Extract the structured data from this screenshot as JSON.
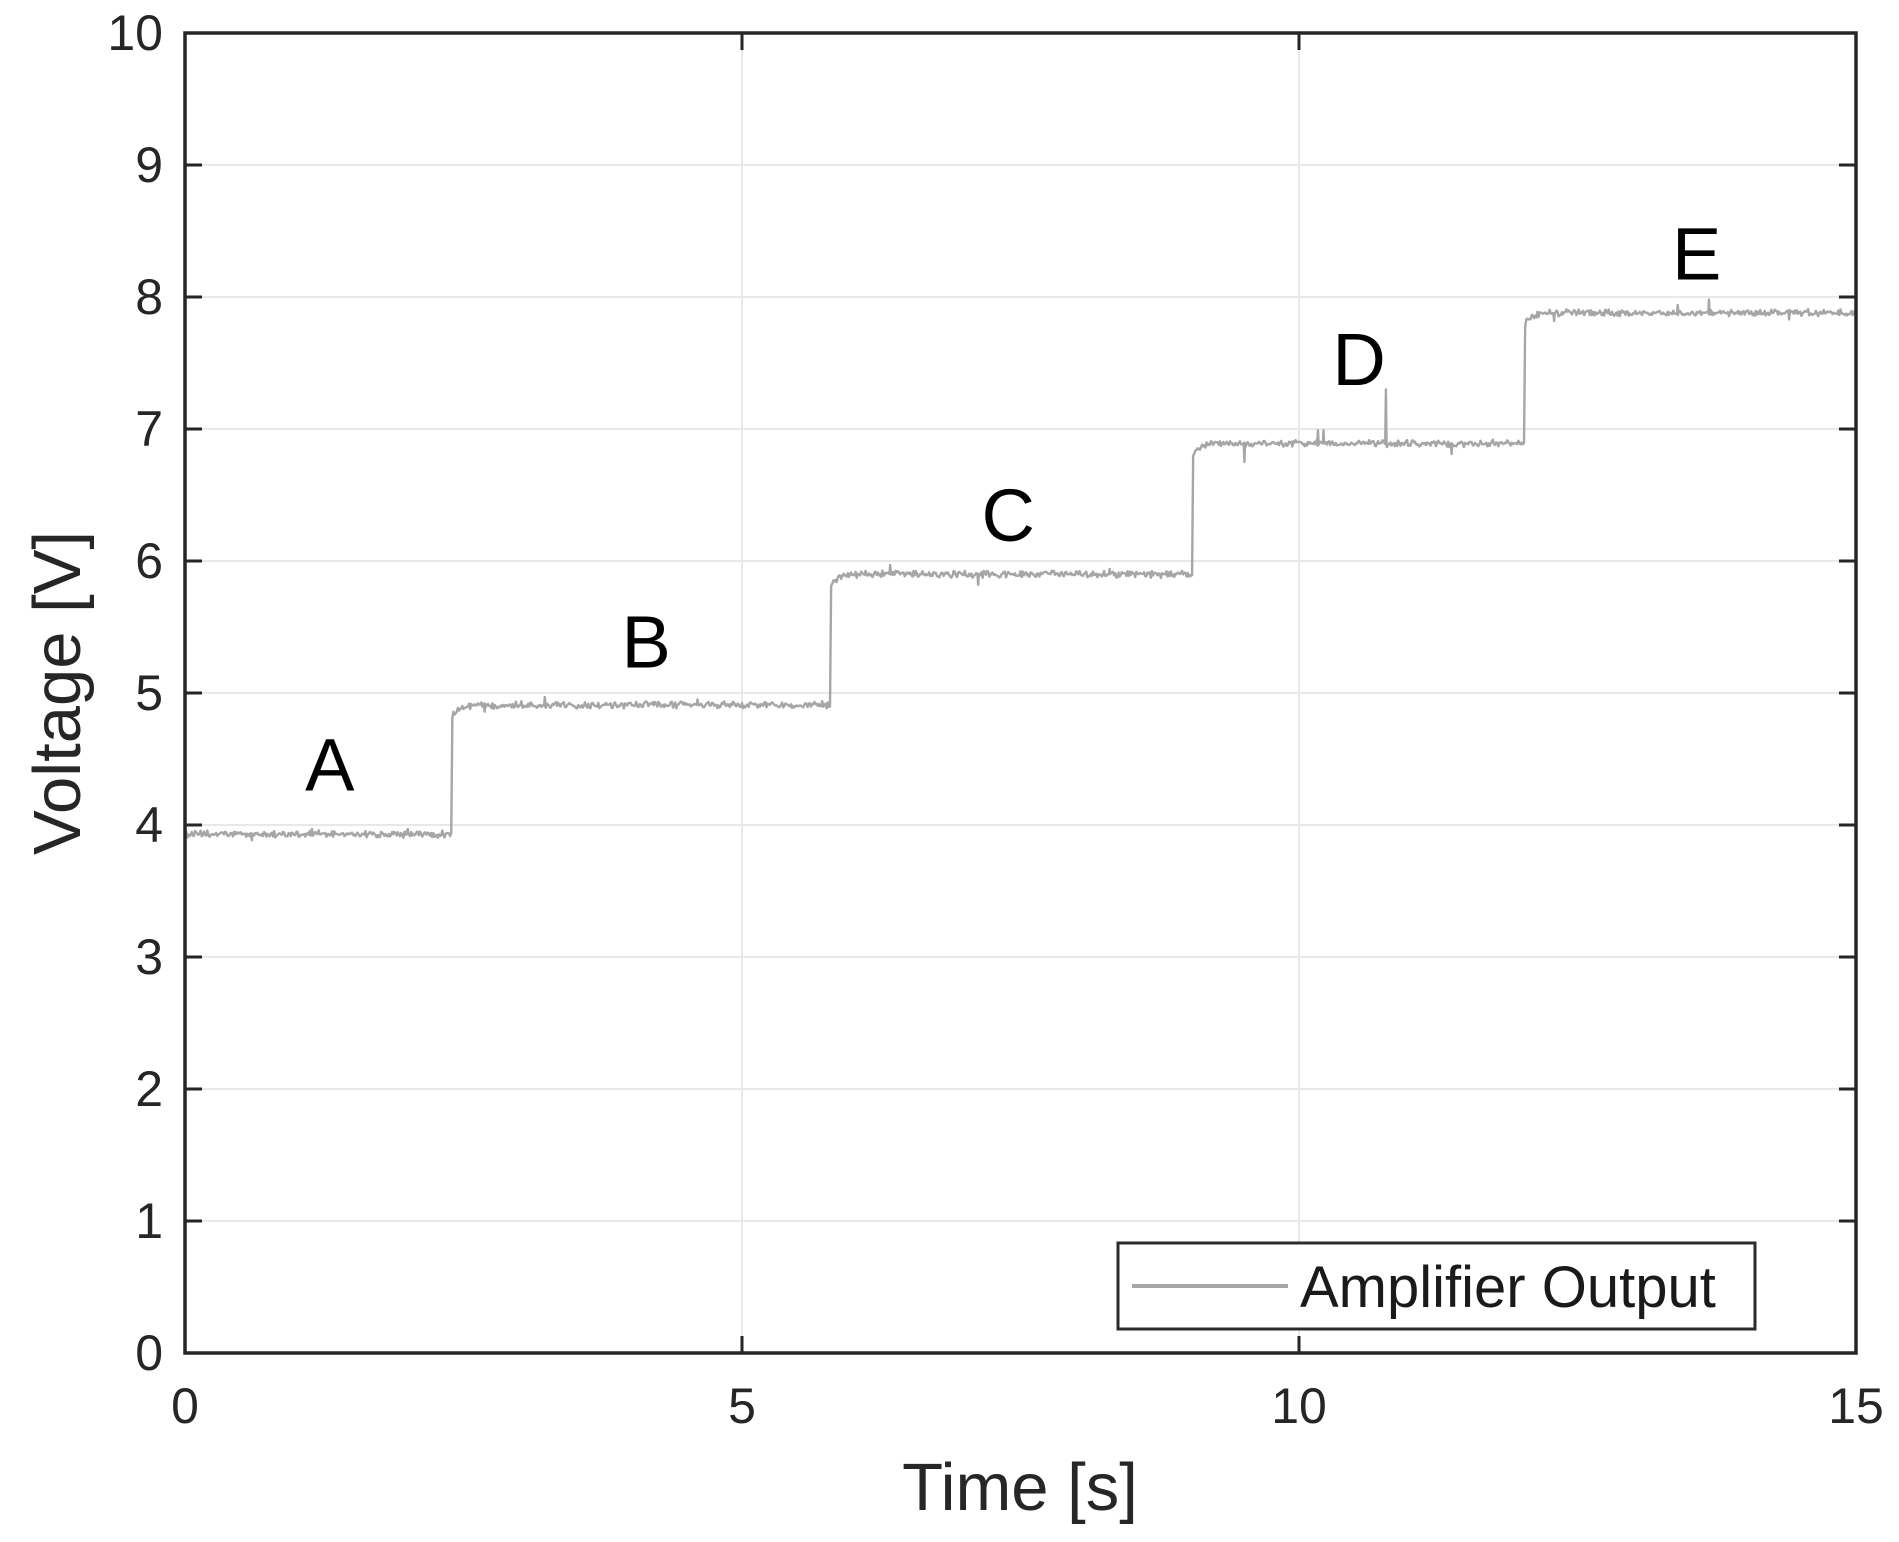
{
  "chart_data": {
    "type": "line",
    "title": "",
    "xlabel": "Time [s]",
    "ylabel": "Voltage [V]",
    "xlim": [
      0,
      15
    ],
    "ylim": [
      0,
      10
    ],
    "xticks": [
      0,
      5,
      10,
      15
    ],
    "yticks": [
      0,
      1,
      2,
      3,
      4,
      5,
      6,
      7,
      8,
      9,
      10
    ],
    "grid": true,
    "legend": {
      "label": "Amplifier Output",
      "position": "southeast"
    },
    "series": [
      {
        "name": "Amplifier Output",
        "color": "#a6a6a6",
        "line_width": 2.4,
        "noise_amplitude": 0.022,
        "steps": [
          {
            "label": "A",
            "t_start": 0.0,
            "t_end": 2.4,
            "value": 3.93
          },
          {
            "label": "B",
            "t_start": 2.4,
            "t_end": 5.8,
            "value": 4.91
          },
          {
            "label": "C",
            "t_start": 5.8,
            "t_end": 9.05,
            "value": 5.9
          },
          {
            "label": "D",
            "t_start": 9.05,
            "t_end": 12.03,
            "value": 6.89
          },
          {
            "label": "E",
            "t_start": 12.03,
            "t_end": 15.0,
            "value": 7.88
          }
        ],
        "spikes": [
          {
            "t": 0.6,
            "dv": -0.045
          },
          {
            "t": 1.14,
            "dv": 0.04
          },
          {
            "t": 2.0,
            "dv": 0.04
          },
          {
            "t": 2.69,
            "dv": -0.05
          },
          {
            "t": 3.23,
            "dv": 0.06
          },
          {
            "t": 4.6,
            "dv": 0.04
          },
          {
            "t": 6.33,
            "dv": 0.07
          },
          {
            "t": 7.12,
            "dv": -0.08
          },
          {
            "t": 8.3,
            "dv": 0.04
          },
          {
            "t": 9.51,
            "dv": -0.14
          },
          {
            "t": 10.17,
            "dv": 0.1
          },
          {
            "t": 10.22,
            "dv": 0.1
          },
          {
            "t": 10.78,
            "dv": 0.41
          },
          {
            "t": 11.37,
            "dv": -0.08
          },
          {
            "t": 12.29,
            "dv": -0.06
          },
          {
            "t": 13.4,
            "dv": 0.06
          },
          {
            "t": 13.68,
            "dv": 0.1
          },
          {
            "t": 14.4,
            "dv": -0.05
          }
        ]
      }
    ],
    "annotations": [
      {
        "text": "A",
        "x": 1.3,
        "y": 4.46
      },
      {
        "text": "B",
        "x": 4.14,
        "y": 5.39
      },
      {
        "text": "C",
        "x": 7.39,
        "y": 6.35
      },
      {
        "text": "D",
        "x": 10.54,
        "y": 7.53
      },
      {
        "text": "E",
        "x": 13.57,
        "y": 8.33
      }
    ],
    "colors": {
      "axis": "#262626",
      "grid": "#e8e8e8",
      "annotation_text": "#000000",
      "legend_border": "#2b2b2b",
      "background": "#ffffff"
    }
  }
}
